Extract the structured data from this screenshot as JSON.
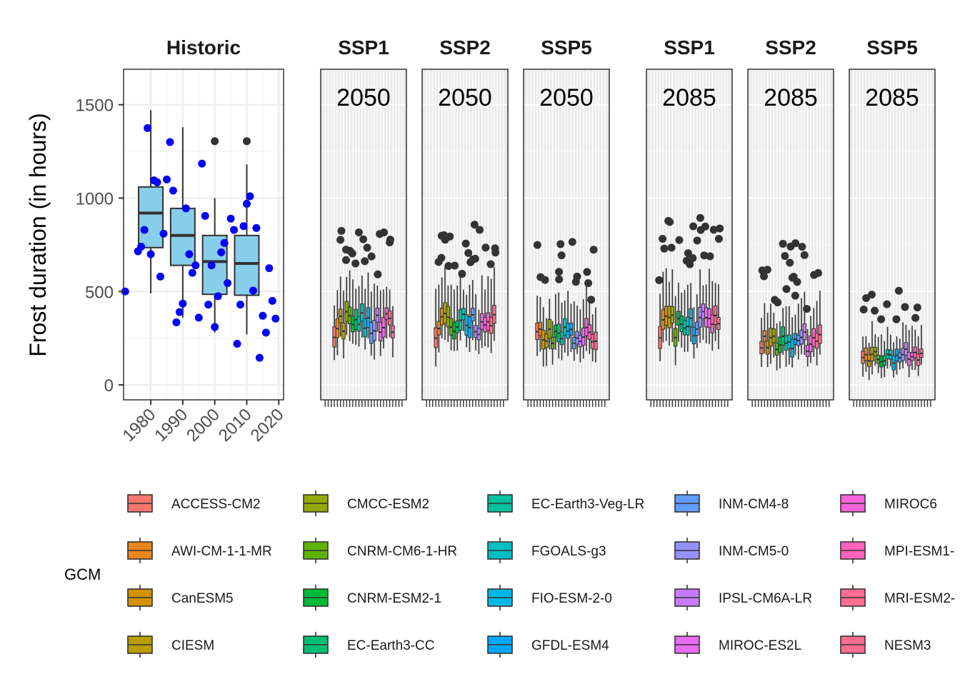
{
  "chart_data": {
    "type": "boxplot",
    "ylabel": "Frost duration (in hours)",
    "ylim": [
      -80,
      1690
    ],
    "yticks": [
      0,
      500,
      1000,
      1500
    ],
    "grid": true,
    "legend_title": "GCM",
    "legend_placement": "bottom",
    "gcms": [
      {
        "name": "ACCESS-CM2",
        "color": "#F8766D"
      },
      {
        "name": "AWI-CM-1-1-MR",
        "color": "#E7861B"
      },
      {
        "name": "CanESM5",
        "color": "#D39200"
      },
      {
        "name": "CIESM",
        "color": "#B79F00"
      },
      {
        "name": "CMCC-ESM2",
        "color": "#93AA00"
      },
      {
        "name": "CNRM-CM6-1-HR",
        "color": "#5EB300"
      },
      {
        "name": "CNRM-ESM2-1",
        "color": "#00BA38"
      },
      {
        "name": "EC-Earth3-CC",
        "color": "#00BF74"
      },
      {
        "name": "EC-Earth3-Veg-LR",
        "color": "#00C19F"
      },
      {
        "name": "FGOALS-g3",
        "color": "#00BFC4"
      },
      {
        "name": "FIO-ESM-2-0",
        "color": "#00B8E7"
      },
      {
        "name": "GFDL-ESM4",
        "color": "#00A9FF"
      },
      {
        "name": "INM-CM4-8",
        "color": "#619CFF"
      },
      {
        "name": "INM-CM5-0",
        "color": "#9590FF"
      },
      {
        "name": "IPSL-CM6A-LR",
        "color": "#C77CFF"
      },
      {
        "name": "MIROC-ES2L",
        "color": "#E76BF3"
      },
      {
        "name": "MIROC6",
        "color": "#FA62DB"
      },
      {
        "name": "MPI-ESM1-",
        "color": "#FF62BC"
      },
      {
        "name": "MRI-ESM2-",
        "color": "#FF6C91"
      },
      {
        "name": "NESM3",
        "color": "#FF6C91"
      }
    ],
    "historic": {
      "strip": "Historic",
      "xticks": [
        "1980",
        "1990",
        "2000",
        "2010",
        "2020"
      ],
      "xlim": [
        1971.5,
        2021.5
      ],
      "boxes": [
        {
          "x": 1980,
          "q1": 735,
          "median": 920,
          "q3": 1060,
          "lo": 490,
          "hi": 1470
        },
        {
          "x": 1990,
          "q1": 640,
          "median": 800,
          "q3": 945,
          "lo": 360,
          "hi": 1380
        },
        {
          "x": 2000,
          "q1": 485,
          "median": 660,
          "q3": 800,
          "lo": 280,
          "hi": 1000,
          "outliers": [
            1305
          ]
        },
        {
          "x": 2010,
          "q1": 480,
          "median": 650,
          "q3": 800,
          "lo": 270,
          "hi": 1180,
          "outliers": [
            1305
          ]
        }
      ],
      "points": [
        [
          1972,
          500
        ],
        [
          1976,
          715
        ],
        [
          1977,
          740
        ],
        [
          1978,
          830
        ],
        [
          1979,
          1375
        ],
        [
          1980,
          700
        ],
        [
          1981,
          1095
        ],
        [
          1982,
          1085
        ],
        [
          1983,
          580
        ],
        [
          1984,
          810
        ],
        [
          1985,
          1100
        ],
        [
          1986,
          1300
        ],
        [
          1987,
          1040
        ],
        [
          1988,
          335
        ],
        [
          1989,
          390
        ],
        [
          1990,
          435
        ],
        [
          1991,
          945
        ],
        [
          1992,
          700
        ],
        [
          1993,
          600
        ],
        [
          1994,
          640
        ],
        [
          1995,
          360
        ],
        [
          1996,
          1185
        ],
        [
          1997,
          905
        ],
        [
          1998,
          430
        ],
        [
          1999,
          640
        ],
        [
          2000,
          310
        ],
        [
          2001,
          475
        ],
        [
          2002,
          710
        ],
        [
          2003,
          760
        ],
        [
          2004,
          545
        ],
        [
          2005,
          890
        ],
        [
          2006,
          830
        ],
        [
          2007,
          220
        ],
        [
          2008,
          430
        ],
        [
          2009,
          850
        ],
        [
          2010,
          970
        ],
        [
          2011,
          1010
        ],
        [
          2012,
          505
        ],
        [
          2013,
          840
        ],
        [
          2014,
          145
        ],
        [
          2015,
          370
        ],
        [
          2016,
          280
        ],
        [
          2017,
          625
        ],
        [
          2018,
          450
        ],
        [
          2019,
          355
        ]
      ]
    },
    "future_panels": [
      {
        "strip": "SSP1",
        "year": "2050",
        "level": 310,
        "spread": 1.0,
        "outlier_top": 780
      },
      {
        "strip": "SSP2",
        "year": "2050",
        "level": 300,
        "spread": 1.0,
        "outlier_top": 800
      },
      {
        "strip": "SSP5",
        "year": "2050",
        "level": 250,
        "spread": 0.95,
        "outlier_top": 720
      },
      {
        "strip": "SSP1",
        "year": "2085",
        "level": 305,
        "spread": 1.05,
        "outlier_top": 860
      },
      {
        "strip": "SSP2",
        "year": "2085",
        "level": 220,
        "spread": 0.9,
        "outlier_top": 700
      },
      {
        "strip": "SSP5",
        "year": "2085",
        "level": 140,
        "spread": 0.7,
        "outlier_top": 450
      }
    ]
  }
}
